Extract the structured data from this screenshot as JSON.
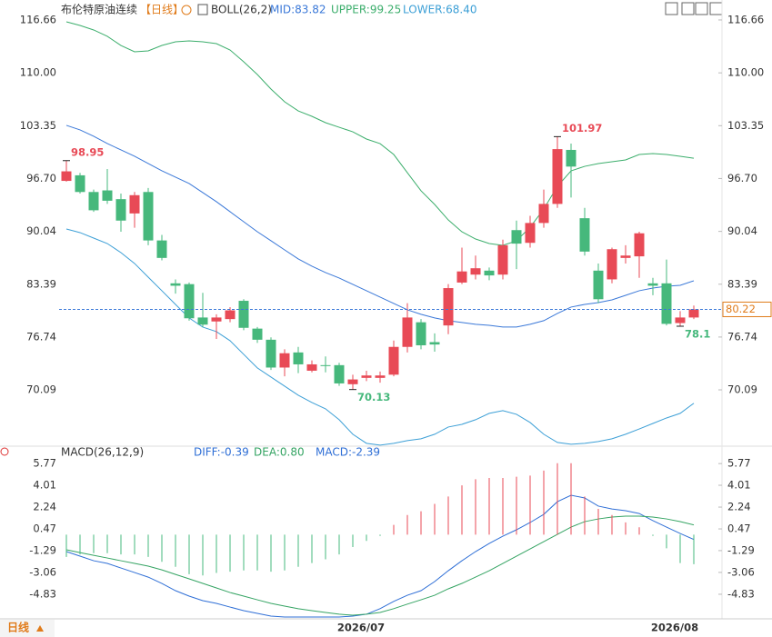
{
  "chart_data": [
    {
      "type": "candlestick",
      "title": "布伦特原油连续",
      "period": "【日线】",
      "indicator": "BOLL(26,2)",
      "categories": [
        null,
        null,
        null,
        null,
        null,
        null,
        null,
        null,
        null,
        null,
        null,
        null,
        null,
        null,
        null,
        null,
        null,
        null,
        null,
        null,
        null,
        null,
        "2026/07",
        null,
        null,
        null,
        null,
        null,
        null,
        null,
        null,
        null,
        null,
        null,
        null,
        null,
        null,
        null,
        null,
        null,
        null,
        null,
        null,
        null,
        null,
        "2026/08",
        null
      ],
      "open": [
        96.4,
        97.1,
        95.0,
        95.2,
        94.1,
        92.3,
        95.0,
        88.9,
        83.5,
        83.4,
        79.2,
        78.7,
        79.0,
        81.3,
        77.8,
        76.4,
        72.9,
        74.8,
        72.5,
        73.2,
        73.2,
        70.8,
        71.6,
        71.6,
        72.0,
        75.5,
        78.6,
        76.1,
        78.2,
        83.6,
        84.6,
        85.1,
        84.6,
        90.2,
        88.6,
        91.1,
        93.5,
        100.3,
        91.7,
        85.1,
        84.0,
        86.7,
        86.9,
        83.5,
        83.5,
        78.5,
        79.2
      ],
      "high": [
        98.95,
        97.4,
        95.3,
        97.9,
        94.8,
        95.0,
        95.5,
        89.6,
        84.0,
        83.6,
        82.3,
        79.6,
        80.5,
        81.5,
        78.0,
        76.7,
        75.2,
        75.5,
        73.8,
        74.3,
        73.5,
        72.0,
        72.5,
        72.4,
        76.3,
        81.0,
        79.0,
        77.2,
        83.4,
        88.0,
        87.0,
        85.5,
        89.0,
        91.4,
        92.0,
        95.3,
        101.97,
        101.1,
        93.0,
        86.0,
        88.0,
        88.3,
        90.0,
        84.2,
        86.5,
        80.0,
        80.7
      ],
      "low": [
        96.3,
        94.8,
        92.5,
        93.5,
        90.0,
        90.5,
        88.3,
        86.4,
        82.2,
        78.8,
        78.0,
        76.5,
        78.6,
        77.6,
        76.0,
        72.6,
        71.8,
        72.2,
        72.3,
        72.3,
        70.6,
        70.13,
        71.2,
        71.0,
        71.8,
        74.8,
        75.2,
        74.9,
        77.1,
        83.4,
        84.0,
        83.9,
        84.0,
        85.3,
        88.0,
        90.5,
        93.0,
        94.3,
        87.0,
        81.0,
        83.5,
        86.0,
        84.2,
        82.0,
        78.2,
        78.1,
        79.0
      ],
      "close": [
        97.6,
        95.0,
        92.7,
        93.9,
        91.4,
        94.6,
        88.9,
        86.7,
        83.2,
        79.1,
        78.3,
        79.2,
        80.1,
        77.9,
        76.4,
        72.9,
        74.7,
        73.3,
        73.3,
        73.1,
        70.9,
        71.4,
        71.9,
        71.9,
        75.5,
        79.2,
        75.7,
        75.8,
        82.9,
        85.0,
        85.4,
        84.5,
        88.3,
        88.5,
        91.1,
        93.5,
        100.4,
        98.2,
        87.5,
        81.5,
        87.8,
        87.0,
        89.8,
        83.2,
        78.4,
        79.2,
        80.22
      ],
      "up_color": "#e84a56",
      "down_color": "#46b87c",
      "series": [
        {
          "name": "MID:83.82",
          "color": "#3a78d8",
          "values": [
            103.39,
            102.82,
            102.02,
            101.1,
            100.3,
            99.5,
            98.59,
            97.67,
            96.87,
            96.07,
            94.93,
            93.78,
            92.52,
            91.26,
            90.0,
            88.86,
            87.71,
            86.57,
            85.66,
            84.86,
            84.17,
            83.37,
            82.57,
            81.77,
            80.97,
            80.17,
            79.6,
            79.14,
            78.8,
            78.57,
            78.34,
            78.22,
            78.0,
            78.0,
            78.34,
            78.8,
            79.71,
            80.51,
            80.85,
            81.08,
            81.42,
            81.99,
            82.57,
            82.91,
            83.14,
            83.25,
            83.82
          ]
        },
        {
          "name": "UPPER:99.25",
          "color": "#3cae6c",
          "values": [
            116.43,
            115.97,
            115.4,
            114.6,
            113.45,
            112.65,
            112.77,
            113.45,
            113.91,
            114.02,
            113.91,
            113.68,
            112.88,
            111.39,
            109.79,
            107.96,
            106.36,
            105.21,
            104.53,
            103.73,
            103.15,
            102.58,
            101.67,
            101.09,
            99.72,
            97.43,
            95.15,
            93.43,
            91.48,
            89.99,
            89.08,
            88.51,
            88.28,
            88.85,
            90.57,
            92.86,
            95.72,
            97.66,
            98.23,
            98.58,
            98.81,
            99.04,
            99.72,
            99.84,
            99.72,
            99.49,
            99.25
          ]
        },
        {
          "name": "LOWER:68.40",
          "color": "#3c9fd6",
          "values": [
            90.34,
            89.89,
            89.2,
            88.51,
            87.37,
            86.0,
            84.28,
            82.57,
            80.85,
            79.14,
            77.99,
            77.42,
            76.28,
            74.56,
            72.85,
            71.7,
            70.56,
            69.41,
            68.5,
            67.7,
            66.33,
            64.5,
            63.36,
            63.13,
            63.36,
            63.7,
            63.93,
            64.5,
            65.41,
            65.75,
            66.33,
            67.13,
            67.47,
            67.01,
            65.98,
            64.5,
            63.47,
            63.24,
            63.36,
            63.59,
            63.93,
            64.5,
            65.17,
            65.86,
            66.55,
            67.13,
            68.4
          ]
        }
      ],
      "ylim": [
        63.0,
        118.6
      ],
      "yticks": [
        70.09,
        76.74,
        83.39,
        90.04,
        {
          "value": 96.7,
          "label": "96.70"
        },
        103.35,
        {
          "value": 110,
          "label": "110.00"
        },
        116.66
      ],
      "last_price_line": true
    },
    {
      "type": "macd",
      "title": "MACD(26,12,9)",
      "series": [
        {
          "name": "DIFF:-0.39",
          "color": "#2f6fd6",
          "kind": "line",
          "values": [
            -1.37,
            -1.74,
            -2.11,
            -2.33,
            -2.7,
            -3.07,
            -3.44,
            -3.95,
            -4.54,
            -4.98,
            -5.35,
            -5.57,
            -5.87,
            -6.16,
            -6.38,
            -6.6,
            -6.68,
            -6.68,
            -6.68,
            -6.68,
            -6.68,
            -6.6,
            -6.45,
            -6.0,
            -5.41,
            -4.91,
            -4.54,
            -3.8,
            -2.92,
            -2.11,
            -1.37,
            -0.71,
            -0.12,
            0.4,
            0.99,
            1.65,
            2.68,
            3.2,
            2.98,
            2.32,
            2.09,
            1.95,
            1.72,
            1.14,
            0.62,
            0.1,
            -0.39
          ]
        },
        {
          "name": "DEA:0.80",
          "color": "#35a463",
          "kind": "line",
          "values": [
            -1.22,
            -1.45,
            -1.67,
            -1.89,
            -2.11,
            -2.33,
            -2.55,
            -2.85,
            -3.22,
            -3.58,
            -3.95,
            -4.32,
            -4.69,
            -4.98,
            -5.28,
            -5.57,
            -5.79,
            -6.0,
            -6.16,
            -6.31,
            -6.45,
            -6.53,
            -6.45,
            -6.31,
            -6.0,
            -5.63,
            -5.28,
            -4.91,
            -4.39,
            -3.95,
            -3.44,
            -2.92,
            -2.33,
            -1.74,
            -1.15,
            -0.56,
            0.03,
            0.62,
            1.06,
            1.28,
            1.43,
            1.51,
            1.51,
            1.43,
            1.28,
            1.06,
            0.8
          ]
        },
        {
          "name": "MACD:-2.39",
          "color": "#2f6fd6",
          "kind": "bar",
          "up_color": "#e84a56",
          "down_color": "#46b87c",
          "values": [
            -1.8,
            -1.6,
            -1.5,
            -1.5,
            -1.6,
            -1.6,
            -1.8,
            -2.2,
            -2.6,
            -3.2,
            -3.3,
            -3.1,
            -3.0,
            -2.9,
            -2.9,
            -3.0,
            -2.9,
            -2.6,
            -2.3,
            -2.0,
            -1.6,
            -1.0,
            -0.5,
            -0.1,
            0.8,
            1.6,
            1.9,
            2.5,
            3.1,
            4.0,
            4.5,
            4.6,
            4.6,
            4.7,
            4.8,
            5.2,
            5.8,
            5.8,
            3.1,
            2.1,
            1.6,
            1.0,
            0.6,
            -0.1,
            -1.1,
            -2.3,
            -2.39
          ]
        }
      ],
      "ylim": [
        -6.75,
        6.15
      ],
      "yticks": [
        5.77,
        4.01,
        2.24,
        0.47,
        -1.29,
        -3.06,
        -4.83
      ]
    }
  ],
  "footer": {
    "period_button": "日线"
  }
}
